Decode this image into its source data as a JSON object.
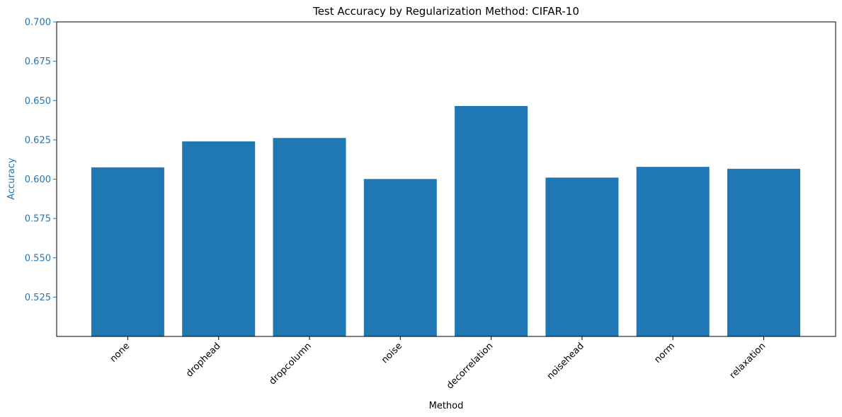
{
  "chart_data": {
    "type": "bar",
    "title": "Test Accuracy by Regularization Method: CIFAR-10",
    "xlabel": "Method",
    "ylabel": "Accuracy",
    "categories": [
      "none",
      "drophead",
      "dropcolumn",
      "noise",
      "decorrelation",
      "noisehead",
      "norm",
      "relaxation"
    ],
    "values": [
      0.6075,
      0.624,
      0.6262,
      0.6001,
      0.6465,
      0.601,
      0.6078,
      0.6066
    ],
    "ylim": [
      0.5,
      0.7
    ],
    "yticks": [
      "0.525",
      "0.550",
      "0.575",
      "0.600",
      "0.625",
      "0.650",
      "0.675",
      "0.700"
    ],
    "grid": false,
    "colors": {
      "bar": "#1f77b4",
      "y_axis": "#1f77b4",
      "text": "#000000"
    }
  }
}
